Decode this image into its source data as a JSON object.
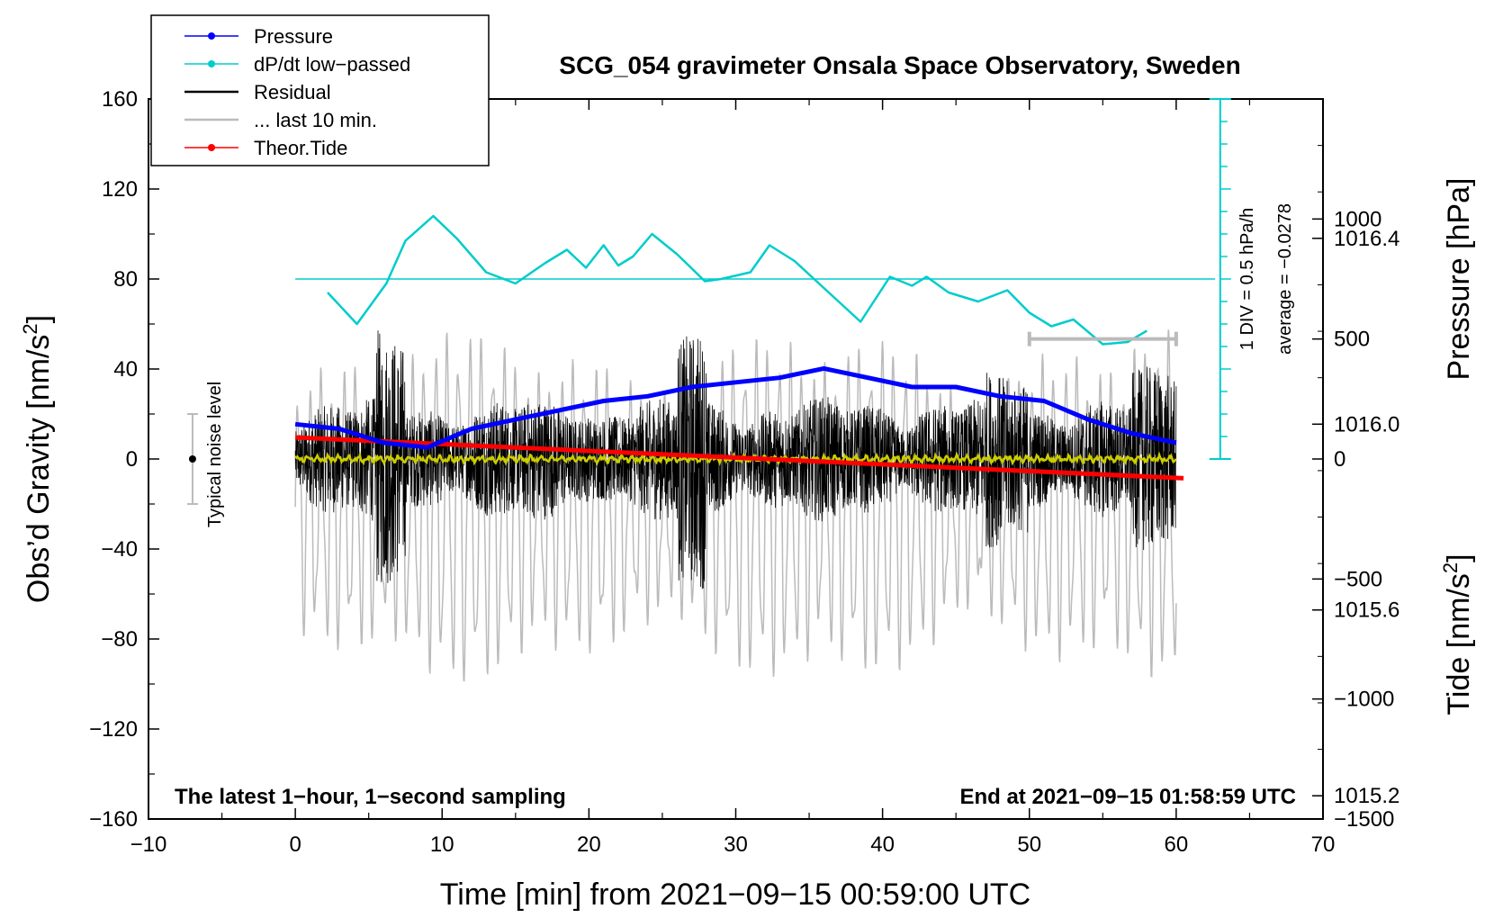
{
  "chart_data": {
    "type": "line",
    "title": "SCG_054 gravimeter Onsala Space Observatory, Sweden",
    "xlabel": "Time [min] from 2021−09−15 00:59:00 UTC",
    "ylabel_left": "Obs’d Gravity [nm/s",
    "ylabel_left_sup": "2",
    "ylabel_left_close": "]",
    "ylabel_right_pressure": "Pressure [hPa]",
    "ylabel_right_tide": "Tide [nm/s",
    "ylabel_right_tide_sup": "2",
    "ylabel_right_tide_close": "]",
    "xlim": [
      -10,
      70
    ],
    "ylim": [
      -160,
      160
    ],
    "pressure_lim": [
      1015.15,
      1016.7
    ],
    "tide_lim": [
      -1500,
      1500
    ],
    "x_ticks": [
      -10,
      0,
      10,
      20,
      30,
      40,
      50,
      60,
      70
    ],
    "x_tick_labels": [
      "−10",
      "0",
      "10",
      "20",
      "30",
      "40",
      "50",
      "60",
      "70"
    ],
    "y_ticks": [
      160,
      120,
      80,
      40,
      0,
      -40,
      -80,
      -120,
      -160
    ],
    "y_tick_labels": [
      "160",
      "120",
      "80",
      "40",
      "0",
      "−40",
      "−80",
      "−120",
      "−160"
    ],
    "pressure_ticks": [
      1016.4,
      1016.0,
      1015.6,
      1015.2
    ],
    "pressure_tick_labels": [
      "1016.4",
      "1016.0",
      "1015.6",
      "1015.2"
    ],
    "tide_ticks": [
      1000,
      500,
      0,
      -500,
      -1000,
      -1500
    ],
    "tide_tick_labels": [
      "1000",
      "500",
      "0",
      "−500",
      "−1000",
      "−1500"
    ],
    "legend": [
      {
        "label": "Pressure",
        "color": "#0000ff",
        "marker": true
      },
      {
        "label": "dP/dt low−passed",
        "color": "#00cccc",
        "marker": true
      },
      {
        "label": "Residual",
        "color": "#000000",
        "marker": false
      },
      {
        "label": "... last 10 min.",
        "color": "#bbbbbb",
        "marker": false
      },
      {
        "label": "Theor.Tide",
        "color": "#ff0000",
        "marker": true
      }
    ],
    "series": [
      {
        "name": "Pressure",
        "color": "#0000ff",
        "axis": "pressure",
        "x": [
          0,
          3,
          6,
          9,
          12,
          15,
          18,
          21,
          24,
          27,
          30,
          33,
          36,
          39,
          42,
          45,
          48,
          51,
          54,
          57,
          60
        ],
        "values": [
          1016.0,
          1015.99,
          1015.96,
          1015.95,
          1015.99,
          1016.01,
          1016.03,
          1016.05,
          1016.06,
          1016.08,
          1016.09,
          1016.1,
          1016.12,
          1016.1,
          1016.08,
          1016.08,
          1016.06,
          1016.05,
          1016.01,
          1015.98,
          1015.96
        ]
      },
      {
        "name": "dP/dt low−passed",
        "color": "#00cccc",
        "axis": "gravity",
        "x": [
          2.2,
          4.2,
          6.2,
          7.5,
          9.4,
          11,
          13,
          15,
          17,
          18.5,
          19.8,
          21,
          22,
          23,
          24.3,
          26,
          27.9,
          29,
          31,
          32.3,
          34,
          36,
          38.5,
          40.5,
          42,
          43,
          44.5,
          46.5,
          48.5,
          50,
          51.5,
          53,
          55,
          56.7,
          58
        ],
        "values": [
          74,
          60,
          78,
          97,
          108,
          98,
          83,
          78,
          87,
          93,
          85,
          95,
          86,
          90,
          100,
          91,
          79,
          80,
          83,
          95,
          88,
          76,
          61,
          81,
          77,
          81,
          74,
          70,
          75,
          65,
          59,
          62,
          51,
          52,
          57
        ]
      },
      {
        "name": "Residual",
        "color": "#000000",
        "axis": "gravity",
        "x_range": [
          0,
          60
        ]
      },
      {
        "name": "Residual smoothed",
        "color": "#cccc00",
        "axis": "gravity",
        "x_range": [
          0,
          60
        ]
      },
      {
        "name": "... last 10 min.",
        "color": "#bbbbbb",
        "axis": "tide",
        "x_range": [
          0,
          60
        ]
      },
      {
        "name": "Theor.Tide",
        "color": "#ff0000",
        "axis": "tide",
        "x": [
          0,
          60.5
        ],
        "values": [
          90,
          -80
        ]
      }
    ],
    "pressure_dpdt_zero": 80,
    "annotations": {
      "noise_label": "Typical noise level",
      "noise_range": [
        -20,
        20
      ],
      "noise_x": -7,
      "div_label": "1 DIV = 0.5 hPa/h",
      "average_label": "average = −0.0278",
      "bottom_left": "The latest 1−hour, 1−second sampling",
      "bottom_right": "End at 2021−09−15 01:58:59 UTC",
      "grey_bar_x": [
        50,
        60
      ]
    }
  }
}
